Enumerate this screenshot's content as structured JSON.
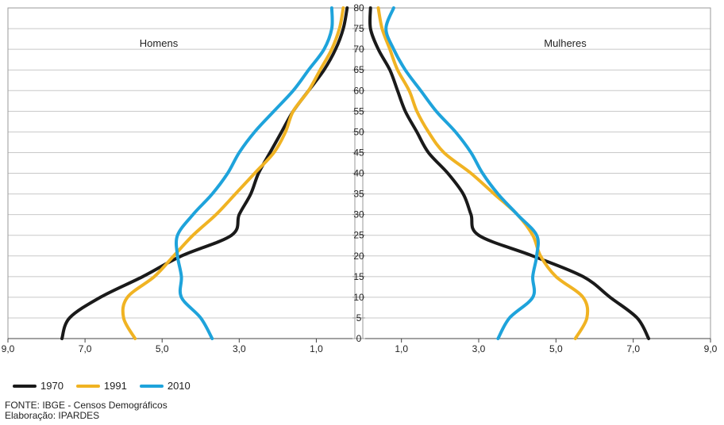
{
  "chart_data": {
    "type": "line",
    "layout": "population-pyramid",
    "panels": [
      "Homens",
      "Mulheres"
    ],
    "x_ticks": [
      "9,0",
      "7,0",
      "5,0",
      "3,0",
      "1,0",
      "1,0",
      "3,0",
      "5,0",
      "7,0",
      "9,0"
    ],
    "y_ticks": [
      "0",
      "5",
      "10",
      "15",
      "20",
      "25",
      "30",
      "35",
      "40",
      "45",
      "50",
      "55",
      "60",
      "65",
      "70",
      "75",
      "80"
    ],
    "xlim": [
      0,
      9
    ],
    "ylim": [
      0,
      80
    ],
    "grid": true,
    "legend_position": "bottom-left",
    "ages": [
      0,
      5,
      10,
      15,
      20,
      25,
      30,
      35,
      40,
      45,
      50,
      55,
      60,
      65,
      70,
      75,
      80
    ],
    "series": [
      {
        "name": "1970",
        "color": "#1a1a1a",
        "homens": [
          7.6,
          7.4,
          6.6,
          5.5,
          4.5,
          3.2,
          3.0,
          2.7,
          2.5,
          2.2,
          1.9,
          1.6,
          1.2,
          0.8,
          0.5,
          0.3,
          0.2
        ],
        "mulheres": [
          7.4,
          7.1,
          6.4,
          5.7,
          4.4,
          3.0,
          2.8,
          2.6,
          2.2,
          1.7,
          1.4,
          1.1,
          0.9,
          0.7,
          0.4,
          0.2,
          0.2
        ]
      },
      {
        "name": "1991",
        "color": "#f0b323",
        "homens": [
          5.7,
          6.0,
          5.9,
          5.2,
          4.7,
          4.2,
          3.6,
          3.1,
          2.6,
          2.1,
          1.8,
          1.6,
          1.2,
          0.9,
          0.6,
          0.4,
          0.3
        ],
        "mulheres": [
          5.5,
          5.8,
          5.7,
          5.0,
          4.6,
          4.4,
          4.0,
          3.4,
          2.8,
          2.1,
          1.7,
          1.4,
          1.2,
          0.9,
          0.7,
          0.5,
          0.4
        ]
      },
      {
        "name": "2010",
        "color": "#1ea3db",
        "homens": [
          3.7,
          4.0,
          4.5,
          4.5,
          4.6,
          4.6,
          4.2,
          3.7,
          3.3,
          3.0,
          2.6,
          2.1,
          1.6,
          1.2,
          0.8,
          0.6,
          0.6
        ],
        "mulheres": [
          3.5,
          3.8,
          4.4,
          4.4,
          4.5,
          4.5,
          4.0,
          3.5,
          3.1,
          2.8,
          2.4,
          1.9,
          1.5,
          1.1,
          0.8,
          0.6,
          0.8
        ]
      }
    ]
  },
  "footer": {
    "source": "FONTE: IBGE - Censos Demográficos",
    "credit": "Elaboração: IPARDES"
  }
}
